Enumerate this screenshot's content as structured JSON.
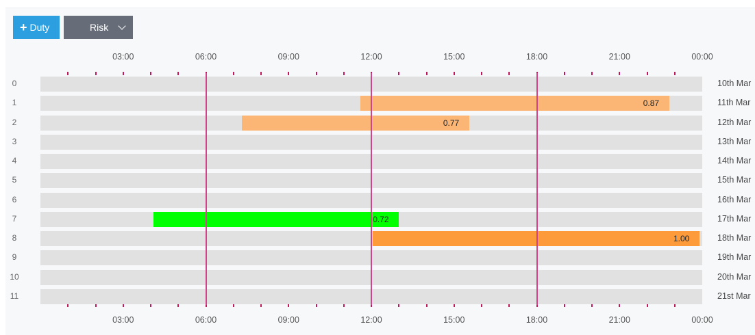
{
  "toolbar": {
    "duty_label": "Duty",
    "risk_label": "Risk"
  },
  "time_axis": {
    "labels": [
      "03:00",
      "06:00",
      "09:00",
      "12:00",
      "15:00",
      "18:00",
      "21:00",
      "00:00"
    ],
    "hours": [
      3,
      6,
      9,
      12,
      15,
      18,
      21,
      24
    ],
    "tick_hours": [
      1,
      2,
      3,
      4,
      5,
      6,
      7,
      8,
      9,
      10,
      11,
      12,
      13,
      14,
      15,
      16,
      17,
      18,
      19,
      20,
      21,
      22,
      23
    ],
    "marker_hours": [
      6,
      12,
      18
    ]
  },
  "rows": [
    {
      "index": "0",
      "date": "10th Mar"
    },
    {
      "index": "1",
      "date": "11th Mar"
    },
    {
      "index": "2",
      "date": "12th Mar"
    },
    {
      "index": "3",
      "date": "13th Mar"
    },
    {
      "index": "4",
      "date": "14th Mar"
    },
    {
      "index": "5",
      "date": "15th Mar"
    },
    {
      "index": "6",
      "date": "16th Mar"
    },
    {
      "index": "7",
      "date": "17th Mar"
    },
    {
      "index": "8",
      "date": "18th Mar"
    },
    {
      "index": "9",
      "date": "19th Mar"
    },
    {
      "index": "10",
      "date": "20th Mar"
    },
    {
      "index": "11",
      "date": "21st Mar"
    }
  ],
  "duties": [
    {
      "row": 1,
      "start_hour": 11.6,
      "end_hour": 22.8,
      "value": "0.87",
      "color": "#fbb574"
    },
    {
      "row": 2,
      "start_hour": 7.3,
      "end_hour": 15.55,
      "value": "0.77",
      "color": "#fbb574"
    },
    {
      "row": 7,
      "start_hour": 4.1,
      "end_hour": 13.0,
      "value": "0.72",
      "color": "#00ff00"
    },
    {
      "row": 8,
      "start_hour": 12.05,
      "end_hour": 23.9,
      "value": "1.00",
      "color": "#fd9a3a"
    }
  ]
}
